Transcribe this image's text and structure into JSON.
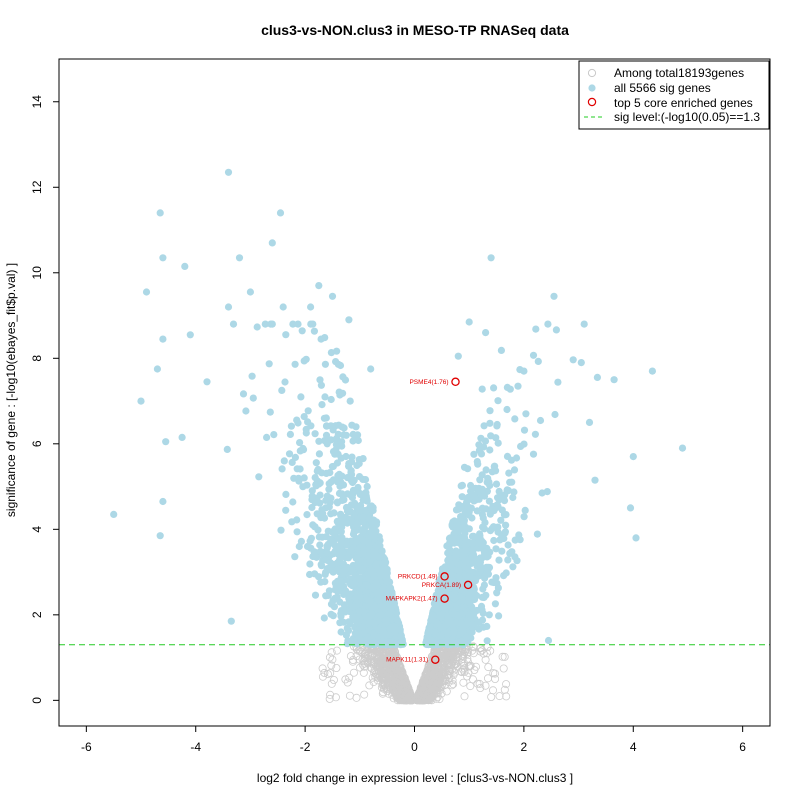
{
  "chart_data": {
    "type": "scatter",
    "title": "clus3-vs-NON.clus3 in MESO-TP RNASeq data",
    "xlabel": "log2 fold change in expression level : [clus3-vs-NON.clus3 ]",
    "ylabel": "significance of gene : [-log10(ebayes_fit$p.val) ]",
    "xlim": [
      -6.5,
      6.5
    ],
    "ylim": [
      -0.6,
      15.0
    ],
    "xticks": [
      -6,
      -4,
      -2,
      0,
      2,
      4,
      6
    ],
    "yticks": [
      0,
      2,
      4,
      6,
      8,
      10,
      12,
      14
    ],
    "sig_threshold": 1.3,
    "legend": {
      "position": "top-right",
      "entries": [
        {
          "label": "Among total18193genes",
          "marker": "open-circle",
          "color": "#d3d3d3"
        },
        {
          "label": "all 5566 sig genes",
          "marker": "filled-circle",
          "color": "#add8e6"
        },
        {
          "label": "top 5 core enriched genes",
          "marker": "open-circle",
          "color": "#e00000"
        },
        {
          "label": "sig level:(-log10(0.05)==1.3",
          "marker": "dashed-line",
          "color": "#22cc22"
        }
      ]
    },
    "series": [
      {
        "name": "Among total18193genes",
        "kind": "background cloud",
        "count": 18193
      },
      {
        "name": "all 5566 sig genes",
        "kind": "significant cloud",
        "count": 5566,
        "notable_points": [
          {
            "x": -3.4,
            "y": 12.35
          },
          {
            "x": -2.45,
            "y": 11.4
          },
          {
            "x": -4.65,
            "y": 11.4
          },
          {
            "x": 1.4,
            "y": 10.35
          },
          {
            "x": -4.6,
            "y": 10.35
          },
          {
            "x": -3.2,
            "y": 10.35
          },
          {
            "x": -4.2,
            "y": 10.15
          },
          {
            "x": -2.6,
            "y": 10.7
          },
          {
            "x": -4.9,
            "y": 9.55
          },
          {
            "x": 2.55,
            "y": 9.45
          },
          {
            "x": -5.5,
            "y": 4.35
          },
          {
            "x": 4.9,
            "y": 5.9
          },
          {
            "x": 4.35,
            "y": 7.7
          },
          {
            "x": 3.65,
            "y": 7.5
          },
          {
            "x": 3.05,
            "y": 7.9
          },
          {
            "x": 4.0,
            "y": 5.7
          },
          {
            "x": 4.05,
            "y": 3.8
          },
          {
            "x": 3.95,
            "y": 4.5
          },
          {
            "x": 3.2,
            "y": 6.5
          },
          {
            "x": 3.3,
            "y": 5.15
          },
          {
            "x": -4.65,
            "y": 3.85
          },
          {
            "x": -4.6,
            "y": 4.65
          },
          {
            "x": -5.0,
            "y": 7.0
          },
          {
            "x": -4.6,
            "y": 8.45
          },
          {
            "x": -4.1,
            "y": 8.55
          },
          {
            "x": -4.25,
            "y": 6.15
          },
          {
            "x": -3.35,
            "y": 1.85
          },
          {
            "x": 2.45,
            "y": 1.4
          },
          {
            "x": -4.7,
            "y": 7.75
          },
          {
            "x": -4.55,
            "y": 6.05
          },
          {
            "x": 1.0,
            "y": 8.85
          },
          {
            "x": 1.3,
            "y": 8.6
          },
          {
            "x": 0.8,
            "y": 8.05
          },
          {
            "x": -3.0,
            "y": 9.55
          },
          {
            "x": -1.75,
            "y": 9.7
          },
          {
            "x": -1.5,
            "y": 9.45
          },
          {
            "x": -2.4,
            "y": 9.2
          },
          {
            "x": -1.9,
            "y": 9.2
          },
          {
            "x": -3.4,
            "y": 9.2
          },
          {
            "x": -1.2,
            "y": 8.9
          },
          {
            "x": 2.0,
            "y": 7.7
          },
          {
            "x": -0.8,
            "y": 7.75
          }
        ]
      },
      {
        "name": "top 5 core enriched genes",
        "kind": "highlighted",
        "points": [
          {
            "label": "PSME4(1.76)",
            "x": 0.75,
            "y": 7.45
          },
          {
            "label": "PRKCD(1.49)",
            "x": 0.55,
            "y": 2.9
          },
          {
            "label": "PRKCA(1.89)",
            "x": 0.98,
            "y": 2.7
          },
          {
            "label": "MAPKAPK2(1.47)",
            "x": 0.55,
            "y": 2.38
          },
          {
            "label": "MAPK11(1.31)",
            "x": 0.38,
            "y": 0.95
          }
        ]
      }
    ]
  }
}
